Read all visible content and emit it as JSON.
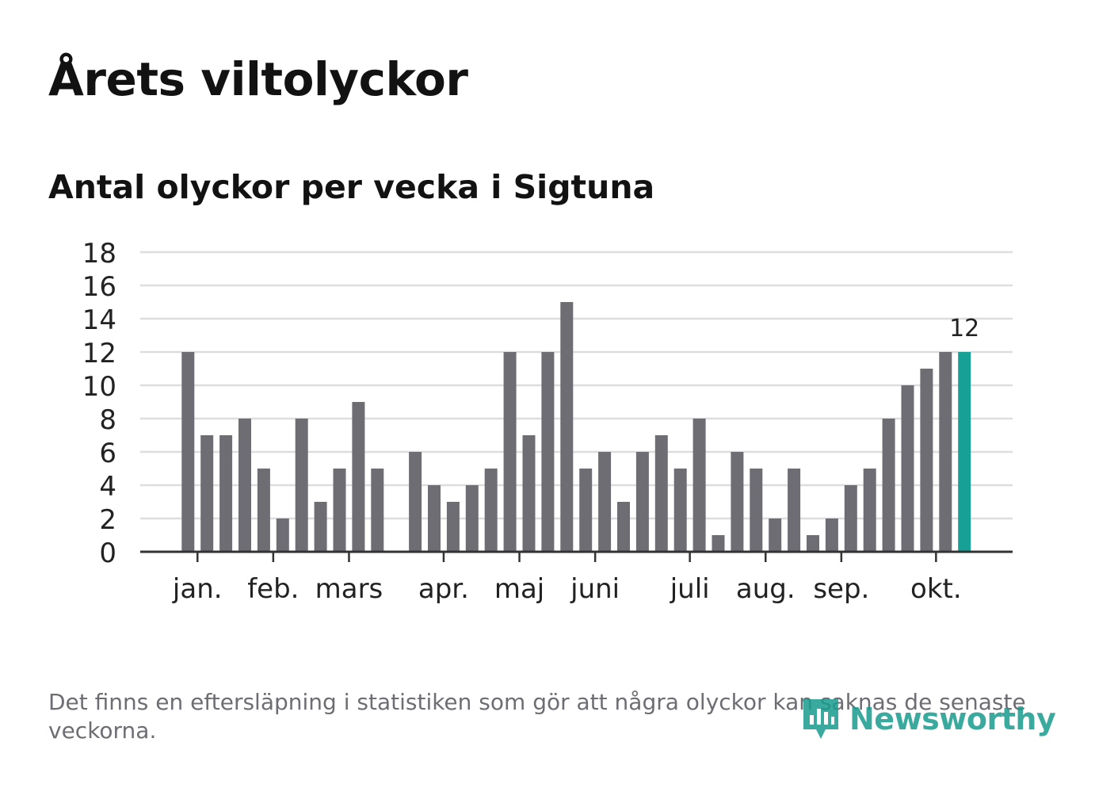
{
  "header": {
    "title": "Årets viltolyckor",
    "subtitle": "Antal olyckor per vecka i Sigtuna"
  },
  "footer": {
    "note": "Det finns en eftersläpning i statistiken som gör att några olyckor kan saknas de senaste veckorna.",
    "logo_text": "Newsworthy"
  },
  "colors": {
    "bar": "#6e6d74",
    "highlight": "#17a096",
    "grid": "#dddddd",
    "axis": "#333333",
    "text": "#222222"
  },
  "chart_data": {
    "type": "bar",
    "title": "Antal olyckor per vecka i Sigtuna",
    "xlabel": "",
    "ylabel": "",
    "ylim": [
      0,
      18
    ],
    "yticks": [
      0,
      2,
      4,
      6,
      8,
      10,
      12,
      14,
      16,
      18
    ],
    "grid": true,
    "slots": 44,
    "weeks": [
      1,
      2,
      3,
      4,
      5,
      6,
      7,
      8,
      9,
      10,
      11,
      12,
      13,
      14,
      15,
      16,
      17,
      18,
      19,
      20,
      21,
      22,
      23,
      24,
      25,
      26,
      27,
      28,
      29,
      30,
      31,
      32,
      33,
      34,
      35,
      36,
      37,
      38,
      39,
      40,
      41,
      42,
      43,
      44
    ],
    "values": [
      null,
      null,
      12,
      7,
      7,
      8,
      5,
      2,
      8,
      3,
      5,
      9,
      5,
      null,
      6,
      4,
      3,
      4,
      5,
      12,
      7,
      12,
      15,
      5,
      6,
      3,
      6,
      7,
      5,
      8,
      1,
      6,
      5,
      2,
      5,
      1,
      2,
      4,
      5,
      8,
      10,
      11,
      12,
      12
    ],
    "highlight_index": 43,
    "highlight_label": "12",
    "month_labels": [
      {
        "label": "jan.",
        "slot": 2.5
      },
      {
        "label": "feb.",
        "slot": 6.5
      },
      {
        "label": "mars",
        "slot": 10.5
      },
      {
        "label": "apr.",
        "slot": 15.5
      },
      {
        "label": "maj",
        "slot": 19.5
      },
      {
        "label": "juni",
        "slot": 23.5
      },
      {
        "label": "juli",
        "slot": 28.5
      },
      {
        "label": "aug.",
        "slot": 32.5
      },
      {
        "label": "sep.",
        "slot": 36.5
      },
      {
        "label": "okt.",
        "slot": 41.5
      }
    ]
  }
}
